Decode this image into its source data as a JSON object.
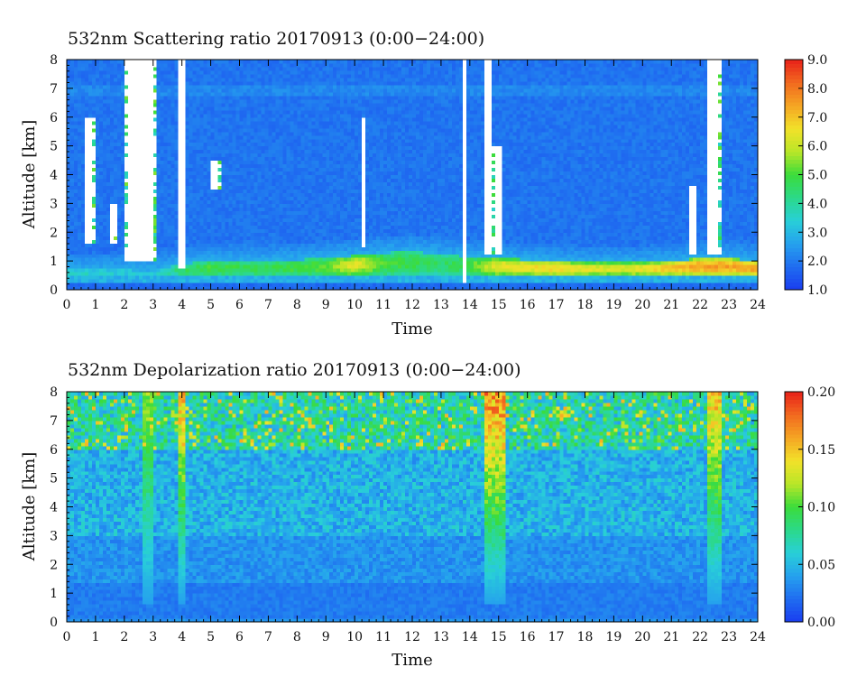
{
  "colors": {
    "colormap": [
      "#1a3cf0",
      "#1f6cf0",
      "#25a0ee",
      "#28cfd8",
      "#2bd98a",
      "#3bdc3b",
      "#b8e628",
      "#f2e229",
      "#f5a623",
      "#f26a1f",
      "#e8221a"
    ],
    "cloud": "#ffffff",
    "axis": "#000000"
  },
  "chart_data": [
    {
      "type": "heatmap",
      "title": "532nm Scattering ratio  20170913 (0:00−24:00)",
      "xlabel": "Time",
      "ylabel": "Altitude [km]",
      "xlim": [
        0,
        24
      ],
      "ylim": [
        0,
        8
      ],
      "x_ticks": [
        "0",
        "1",
        "2",
        "3",
        "4",
        "5",
        "6",
        "7",
        "8",
        "9",
        "10",
        "11",
        "12",
        "13",
        "14",
        "15",
        "16",
        "17",
        "18",
        "19",
        "20",
        "21",
        "22",
        "23",
        "24"
      ],
      "y_ticks": [
        "0",
        "1",
        "2",
        "3",
        "4",
        "5",
        "6",
        "7",
        "8"
      ],
      "colorbar": {
        "min": 1.0,
        "max": 9.0,
        "ticks": [
          "1.0",
          "2.0",
          "3.0",
          "4.0",
          "5.0",
          "6.0",
          "7.0",
          "8.0",
          "9.0"
        ]
      },
      "boundary_layer": {
        "hours": [
          0,
          1,
          2,
          3,
          4,
          5,
          6,
          7,
          8,
          9,
          10,
          11,
          12,
          13,
          14,
          15,
          16,
          17,
          18,
          19,
          20,
          21,
          22,
          23,
          24
        ],
        "top_km": [
          0.7,
          0.7,
          0.7,
          0.65,
          0.9,
          1.0,
          1.0,
          1.0,
          1.05,
          1.1,
          1.2,
          1.3,
          1.35,
          1.25,
          1.15,
          1.1,
          1.05,
          1.0,
          0.95,
          0.95,
          0.95,
          1.0,
          1.1,
          1.1,
          1.0
        ],
        "peak_ratio": [
          3.5,
          3.5,
          3.3,
          3.2,
          4.5,
          5.0,
          4.8,
          4.8,
          5.0,
          5.2,
          6.5,
          5.0,
          4.8,
          4.5,
          5.0,
          6.5,
          6.5,
          6.8,
          6.5,
          6.2,
          6.5,
          7.0,
          7.5,
          7.5,
          7.5
        ]
      },
      "clouds": [
        {
          "t0": 0.65,
          "t1": 0.95,
          "base_km": 1.6,
          "top_km": 6.0
        },
        {
          "t0": 1.5,
          "t1": 1.7,
          "base_km": 1.6,
          "top_km": 3.0
        },
        {
          "t0": 2.05,
          "t1": 3.1,
          "base_km": 1.05,
          "top_km": 8.0
        },
        {
          "t0": 3.85,
          "t1": 4.15,
          "base_km": 0.8,
          "top_km": 8.0
        },
        {
          "t0": 5.0,
          "t1": 5.35,
          "base_km": 3.5,
          "top_km": 4.5
        },
        {
          "t0": 10.2,
          "t1": 10.4,
          "base_km": 1.5,
          "top_km": 6.0
        },
        {
          "t0": 13.75,
          "t1": 13.9,
          "base_km": 0.3,
          "top_km": 8.0
        },
        {
          "t0": 14.5,
          "t1": 14.75,
          "base_km": 1.2,
          "top_km": 8.0
        },
        {
          "t0": 14.8,
          "t1": 15.1,
          "base_km": 1.2,
          "top_km": 5.0
        },
        {
          "t0": 21.65,
          "t1": 21.85,
          "base_km": 1.2,
          "top_km": 3.6
        },
        {
          "t0": 22.2,
          "t1": 22.75,
          "base_km": 1.2,
          "top_km": 8.0
        }
      ]
    },
    {
      "type": "heatmap",
      "title": "532nm Depolarization ratio  20170913 (0:00−24:00)",
      "xlabel": "Time",
      "ylabel": "Altitude [km]",
      "xlim": [
        0,
        24
      ],
      "ylim": [
        0,
        8
      ],
      "x_ticks": [
        "0",
        "1",
        "2",
        "3",
        "4",
        "5",
        "6",
        "7",
        "8",
        "9",
        "10",
        "11",
        "12",
        "13",
        "14",
        "15",
        "16",
        "17",
        "18",
        "19",
        "20",
        "21",
        "22",
        "23",
        "24"
      ],
      "y_ticks": [
        "0",
        "1",
        "2",
        "3",
        "4",
        "5",
        "6",
        "7",
        "8"
      ],
      "colorbar": {
        "min": 0.0,
        "max": 0.2,
        "ticks": [
          "0.00",
          "0.05",
          "0.10",
          "0.15",
          "0.20"
        ]
      },
      "cloud_columns": [
        {
          "t0": 2.6,
          "t1": 3.0,
          "peak": 0.13
        },
        {
          "t0": 3.85,
          "t1": 4.15,
          "peak": 0.17
        },
        {
          "t0": 14.5,
          "t1": 15.2,
          "peak": 0.19
        },
        {
          "t0": 22.25,
          "t1": 22.75,
          "peak": 0.17
        }
      ]
    }
  ]
}
